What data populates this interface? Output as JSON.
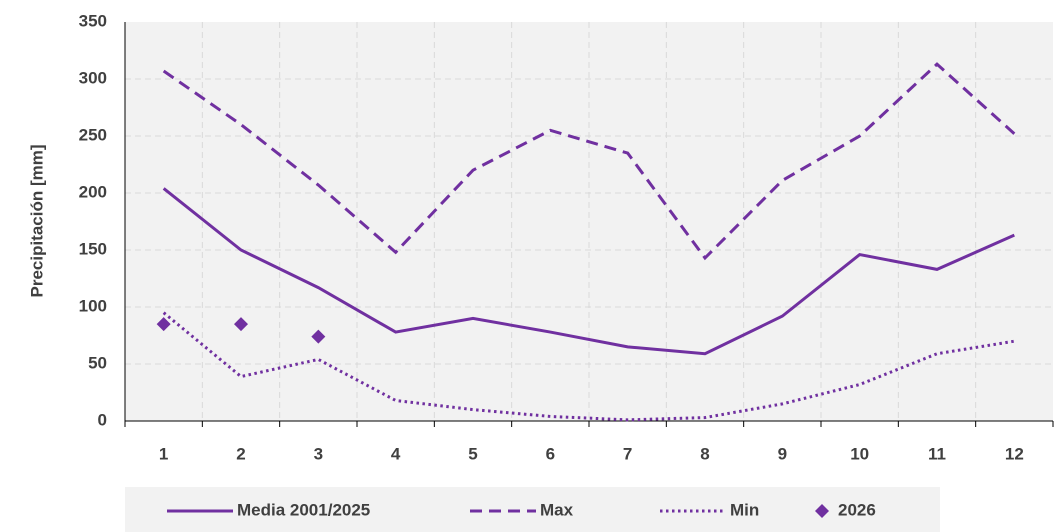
{
  "chart_data": {
    "type": "line",
    "y_label": "Precipitación [mm]",
    "categories": [
      "1",
      "2",
      "3",
      "4",
      "5",
      "6",
      "7",
      "8",
      "9",
      "10",
      "11",
      "12"
    ],
    "series": [
      {
        "name": "Media 2001/2025",
        "color": "#7030a0",
        "style": "solid",
        "values": [
          204,
          150,
          117,
          78,
          90,
          78,
          65,
          59,
          92,
          146,
          133,
          163
        ]
      },
      {
        "name": "Max",
        "color": "#7030a0",
        "style": "dashed",
        "values": [
          307,
          260,
          207,
          148,
          220,
          255,
          235,
          143,
          211,
          250,
          313,
          252
        ]
      },
      {
        "name": "Min",
        "color": "#7030a0",
        "style": "dotted",
        "values": [
          95,
          39,
          54,
          18,
          10,
          4,
          1,
          3,
          15,
          32,
          59,
          70
        ]
      },
      {
        "name": "2026",
        "color": "#7030a0",
        "style": "diamond",
        "values": [
          85,
          85,
          74,
          null,
          null,
          null,
          null,
          null,
          null,
          null,
          null,
          null
        ]
      }
    ],
    "ylim": [
      0,
      350
    ],
    "yticks": [
      0,
      50,
      100,
      150,
      200,
      250,
      300,
      350
    ],
    "grid": true,
    "legend": "bottom"
  }
}
